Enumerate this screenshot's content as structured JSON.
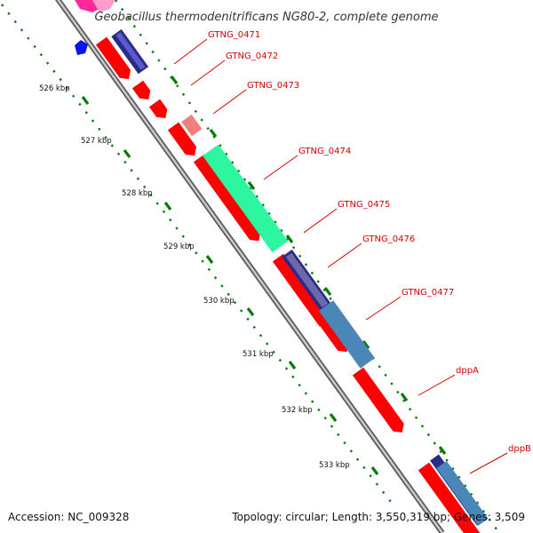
{
  "header": {
    "title": "Geobacillus thermodenitrificans NG80-2, complete genome"
  },
  "footer": {
    "accession": "Accession: NC_009328",
    "stats": "Topology: circular; Length: 3,550,319 bp; Genes: 3,509"
  },
  "colors": {
    "backbone_outer": "#5a5a5a",
    "backbone_inner": "#c8c8c8",
    "gene_forward": "#ff0000",
    "tick_green": "#0a7a0a",
    "label_red": "#d40000",
    "navy": "#2a2a88",
    "steel_blue": "#4a86b8",
    "mint": "#2ef5a0",
    "salmon": "#f08080",
    "pink": "#ff2a9a",
    "blue_marker": "#0a14ee"
  },
  "kbp_ticks": [
    "526 kbp",
    "527 kbp",
    "528 kbp",
    "529 kbp",
    "530 kbp",
    "531 kbp",
    "532 kbp",
    "533 kbp"
  ],
  "genes": [
    {
      "name": "GTNG_0471"
    },
    {
      "name": "GTNG_0472"
    },
    {
      "name": "GTNG_0473"
    },
    {
      "name": "GTNG_0474"
    },
    {
      "name": "GTNG_0475"
    },
    {
      "name": "GTNG_0476"
    },
    {
      "name": "GTNG_0477"
    },
    {
      "name": "dppA"
    },
    {
      "name": "dppB"
    }
  ]
}
